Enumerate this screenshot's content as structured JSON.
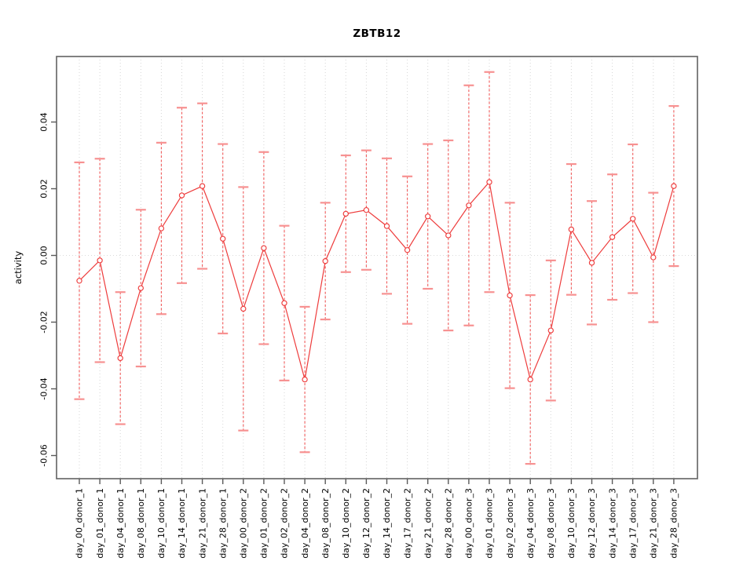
{
  "window": {
    "title": "ZBTB12"
  },
  "chart_data": {
    "type": "line",
    "title": "ZBTB12",
    "xlabel": "",
    "ylabel": "activity",
    "ylim": [
      -0.067,
      0.06
    ],
    "grid": "vertical dotted gridlines at each category; dotted horizontal line at y=0; legend none",
    "marker": "open-circle",
    "error_bars": "symmetric, dashed vertical line with horizontal caps",
    "yticks": [
      {
        "label": "0.04",
        "v": 0.04
      },
      {
        "label": "0.02",
        "v": 0.02
      },
      {
        "label": "0.00",
        "v": 0.0
      },
      {
        "label": "-0.02",
        "v": -0.02
      },
      {
        "label": "-0.04",
        "v": -0.04
      },
      {
        "label": "-0.06",
        "v": -0.06
      }
    ],
    "categories": [
      "day_00_donor_1",
      "day_01_donor_1",
      "day_04_donor_1",
      "day_08_donor_1",
      "day_10_donor_1",
      "day_14_donor_1",
      "day_21_donor_1",
      "day_28_donor_1",
      "day_00_donor_2",
      "day_01_donor_2",
      "day_02_donor_2",
      "day_04_donor_2",
      "day_08_donor_2",
      "day_10_donor_2",
      "day_12_donor_2",
      "day_14_donor_2",
      "day_17_donor_2",
      "day_21_donor_2",
      "day_28_donor_2",
      "day_00_donor_3",
      "day_01_donor_3",
      "day_02_donor_3",
      "day_04_donor_3",
      "day_08_donor_3",
      "day_10_donor_3",
      "day_12_donor_3",
      "day_14_donor_3",
      "day_17_donor_3",
      "day_21_donor_3",
      "day_28_donor_3"
    ],
    "series": [
      {
        "name": "activity",
        "values": [
          -0.0076,
          -0.0015,
          -0.0308,
          -0.0098,
          0.0081,
          0.018,
          0.0208,
          0.005,
          -0.016,
          0.0022,
          -0.0143,
          -0.0372,
          -0.0017,
          0.0125,
          0.0136,
          0.0088,
          0.0016,
          0.0117,
          0.006,
          0.015,
          0.022,
          -0.012,
          -0.0372,
          -0.0225,
          0.0078,
          -0.0022,
          0.0055,
          0.011,
          -0.0006,
          0.0208
        ],
        "err_hi": [
          0.0279,
          0.029,
          -0.011,
          0.0137,
          0.0338,
          0.0443,
          0.0456,
          0.0334,
          0.0205,
          0.031,
          0.0089,
          -0.0154,
          0.0158,
          0.03,
          0.0315,
          0.0291,
          0.0237,
          0.0334,
          0.0345,
          0.051,
          0.055,
          0.0158,
          -0.0119,
          -0.0015,
          0.0274,
          0.0163,
          0.0243,
          0.0333,
          0.0188,
          0.0448
        ],
        "err_lo": [
          -0.0431,
          -0.032,
          -0.0506,
          -0.0333,
          -0.0176,
          -0.0083,
          -0.004,
          -0.0234,
          -0.0525,
          -0.0266,
          -0.0375,
          -0.059,
          -0.0192,
          -0.005,
          -0.0043,
          -0.0115,
          -0.0205,
          -0.01,
          -0.0225,
          -0.021,
          -0.011,
          -0.0398,
          -0.0625,
          -0.0435,
          -0.0118,
          -0.0207,
          -0.0133,
          -0.0113,
          -0.02,
          -0.0032
        ]
      }
    ],
    "colors": {
      "line": "#ee3c3c",
      "errorbar": "#f15b5b",
      "cap": "#f79191",
      "grid": "#d6d6d6",
      "zero_line": "#dadada",
      "box": "#6b6b6b",
      "tick": "#5a5a5a",
      "text": "#000000"
    }
  }
}
